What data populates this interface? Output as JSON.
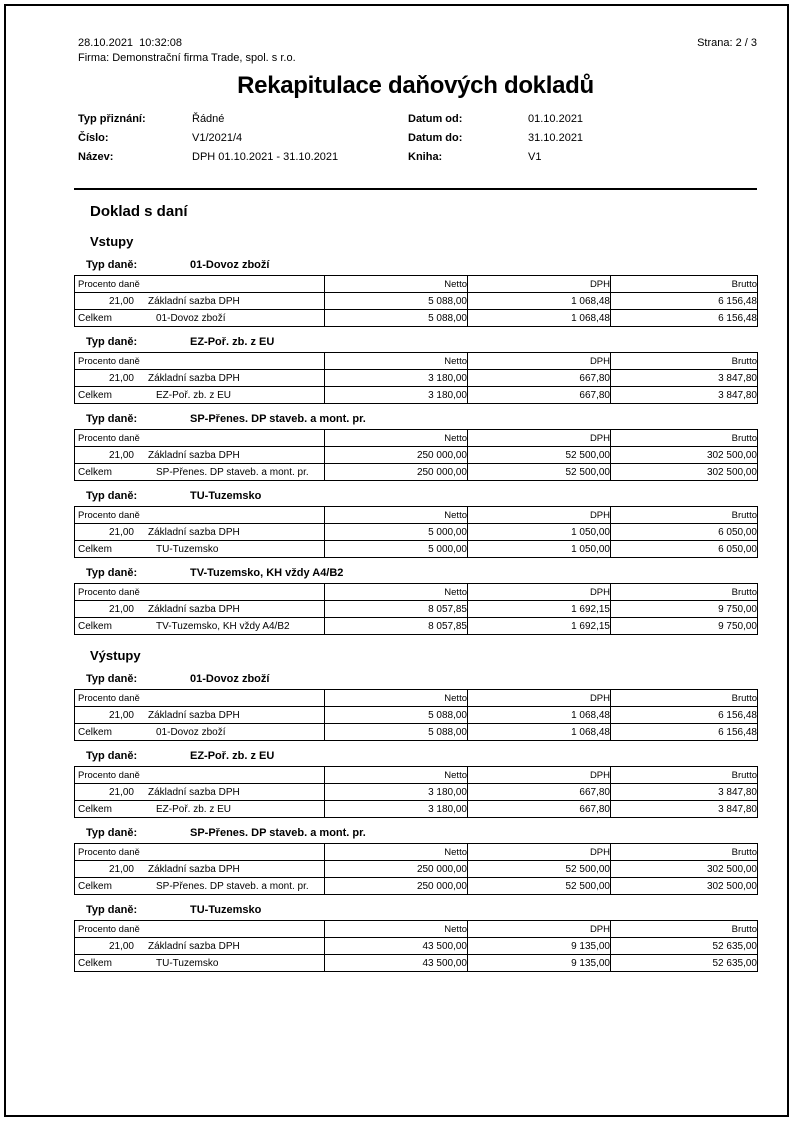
{
  "header": {
    "datetime": "28.10.2021  10:32:08",
    "page_label": "Strana: 2 / 3",
    "company": "Firma: Demonstrační firma Trade, spol. s r.o.",
    "title": "Rekapitulace daňových dokladů"
  },
  "meta": {
    "left": [
      {
        "label": "Typ přiznání:",
        "value": "Řádné"
      },
      {
        "label": "Číslo:",
        "value": "V1/2021/4"
      },
      {
        "label": "Název:",
        "value": "DPH 01.10.2021 - 31.10.2021"
      }
    ],
    "right": [
      {
        "label": "Datum od:",
        "value": "01.10.2021"
      },
      {
        "label": "Datum do:",
        "value": "31.10.2021"
      },
      {
        "label": "Kniha:",
        "value": "V1"
      }
    ]
  },
  "section_title": "Doklad s daní",
  "labels": {
    "typ_dane": "Typ daně:",
    "celkem": "Celkem"
  },
  "table_headers": {
    "col1": "Procento daně",
    "netto": "Netto",
    "dph": "DPH",
    "brutto": "Brutto"
  },
  "groups": [
    {
      "name": "Vstupy",
      "blocks": [
        {
          "tax_type": "01-Dovoz zboží",
          "row": {
            "percent": "21,00",
            "name": "Základní sazba DPH",
            "netto": "5 088,00",
            "dph": "1 068,48",
            "brutto": "6 156,48"
          },
          "total": {
            "name": "01-Dovoz zboží",
            "netto": "5 088,00",
            "dph": "1 068,48",
            "brutto": "6 156,48"
          }
        },
        {
          "tax_type": "EZ-Poř. zb. z EU",
          "row": {
            "percent": "21,00",
            "name": "Základní sazba DPH",
            "netto": "3 180,00",
            "dph": "667,80",
            "brutto": "3 847,80"
          },
          "total": {
            "name": "EZ-Poř. zb. z EU",
            "netto": "3 180,00",
            "dph": "667,80",
            "brutto": "3 847,80"
          }
        },
        {
          "tax_type": "SP-Přenes. DP staveb. a mont. pr.",
          "row": {
            "percent": "21,00",
            "name": "Základní sazba DPH",
            "netto": "250 000,00",
            "dph": "52 500,00",
            "brutto": "302 500,00"
          },
          "total": {
            "name": "SP-Přenes. DP staveb. a mont. pr.",
            "netto": "250 000,00",
            "dph": "52 500,00",
            "brutto": "302 500,00"
          }
        },
        {
          "tax_type": "TU-Tuzemsko",
          "row": {
            "percent": "21,00",
            "name": "Základní sazba DPH",
            "netto": "5 000,00",
            "dph": "1 050,00",
            "brutto": "6 050,00"
          },
          "total": {
            "name": "TU-Tuzemsko",
            "netto": "5 000,00",
            "dph": "1 050,00",
            "brutto": "6 050,00"
          }
        },
        {
          "tax_type": "TV-Tuzemsko, KH vždy A4/B2",
          "row": {
            "percent": "21,00",
            "name": "Základní sazba DPH",
            "netto": "8 057,85",
            "dph": "1 692,15",
            "brutto": "9 750,00"
          },
          "total": {
            "name": "TV-Tuzemsko, KH vždy A4/B2",
            "netto": "8 057,85",
            "dph": "1 692,15",
            "brutto": "9 750,00"
          }
        }
      ]
    },
    {
      "name": "Výstupy",
      "blocks": [
        {
          "tax_type": "01-Dovoz zboží",
          "row": {
            "percent": "21,00",
            "name": "Základní sazba DPH",
            "netto": "5 088,00",
            "dph": "1 068,48",
            "brutto": "6 156,48"
          },
          "total": {
            "name": "01-Dovoz zboží",
            "netto": "5 088,00",
            "dph": "1 068,48",
            "brutto": "6 156,48"
          }
        },
        {
          "tax_type": "EZ-Poř. zb. z EU",
          "row": {
            "percent": "21,00",
            "name": "Základní sazba DPH",
            "netto": "3 180,00",
            "dph": "667,80",
            "brutto": "3 847,80"
          },
          "total": {
            "name": "EZ-Poř. zb. z EU",
            "netto": "3 180,00",
            "dph": "667,80",
            "brutto": "3 847,80"
          }
        },
        {
          "tax_type": "SP-Přenes. DP staveb. a mont. pr.",
          "row": {
            "percent": "21,00",
            "name": "Základní sazba DPH",
            "netto": "250 000,00",
            "dph": "52 500,00",
            "brutto": "302 500,00"
          },
          "total": {
            "name": "SP-Přenes. DP staveb. a mont. pr.",
            "netto": "250 000,00",
            "dph": "52 500,00",
            "brutto": "302 500,00"
          }
        },
        {
          "tax_type": "TU-Tuzemsko",
          "row": {
            "percent": "21,00",
            "name": "Základní sazba DPH",
            "netto": "43 500,00",
            "dph": "9 135,00",
            "brutto": "52 635,00"
          },
          "total": {
            "name": "TU-Tuzemsko",
            "netto": "43 500,00",
            "dph": "9 135,00",
            "brutto": "52 635,00"
          }
        }
      ]
    }
  ]
}
